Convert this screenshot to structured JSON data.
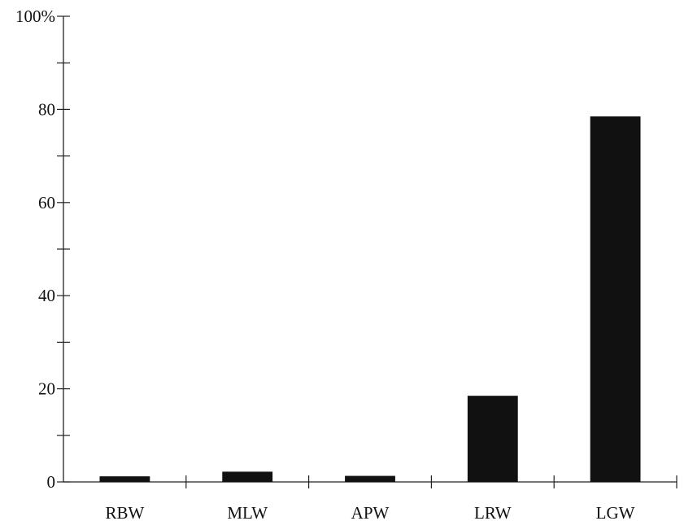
{
  "chart_data": {
    "type": "bar",
    "categories": [
      "RBW",
      "MLW",
      "APW",
      "LRW",
      "LGW"
    ],
    "values": [
      1.2,
      2.2,
      1.3,
      18.5,
      78.5
    ],
    "title": "",
    "xlabel": "",
    "ylabel": "",
    "ylim": [
      0,
      100
    ],
    "yticks": [
      {
        "value": 0,
        "label": "0"
      },
      {
        "value": 20,
        "label": "20"
      },
      {
        "value": 40,
        "label": "40"
      },
      {
        "value": 60,
        "label": "60"
      },
      {
        "value": 80,
        "label": "80"
      },
      {
        "value": 100,
        "label": "100%"
      }
    ],
    "yminor_step": 10,
    "bar_color": "#111111",
    "grid": false,
    "legend": "none"
  }
}
